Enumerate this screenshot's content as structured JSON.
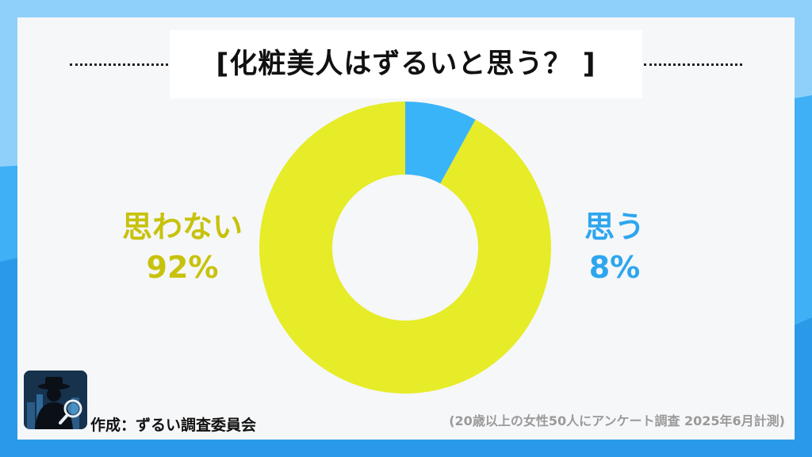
{
  "colors": {
    "background": "#3fb0f5",
    "card": "#f6f7f9",
    "no_series": "#e6ec27",
    "no_label": "#c7c20c",
    "yes_series": "#3ab4f9",
    "yes_label": "#2ea6ee",
    "title": "#111111",
    "note": "#9a9a9a"
  },
  "chart_data": {
    "type": "pie",
    "title": "[化粧美人はずるいと思う？ ]",
    "donut": true,
    "legend": "none",
    "slices": [
      {
        "name": "思う",
        "value": 8,
        "label": "8%"
      },
      {
        "name": "思わない",
        "value": 92,
        "label": "92%"
      }
    ]
  },
  "footer": {
    "credit": "作成：ずるい調査委員会",
    "note": "(20歳以上の女性50人にアンケート調査 2025年6月計測)"
  },
  "logo": {
    "icon": "detective-magnifier-icon"
  }
}
